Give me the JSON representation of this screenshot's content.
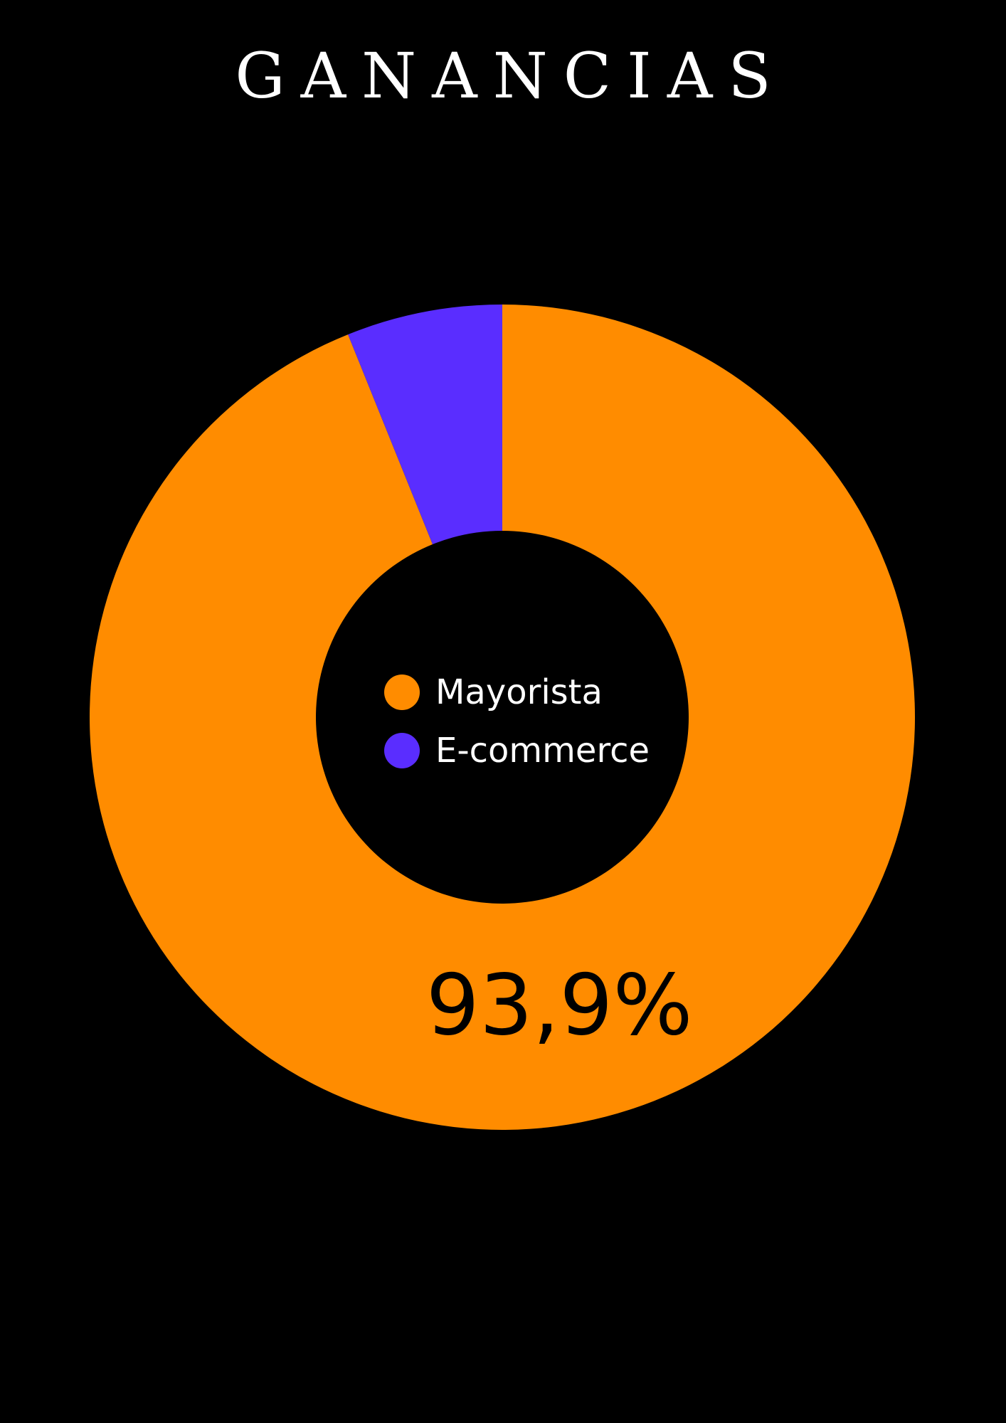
{
  "title": "GANANCIAS",
  "chart_data": {
    "type": "pie",
    "variant": "donut",
    "title": "GANANCIAS",
    "categories": [
      "Mayorista",
      "E-commerce"
    ],
    "values": [
      93.9,
      6.1
    ],
    "colors": [
      "#FF8C00",
      "#5A2DFF"
    ],
    "data_labels": [
      "93,9%",
      ""
    ],
    "legend": [
      {
        "label": "Mayorista",
        "color": "#FF8C00"
      },
      {
        "label": "E-commerce",
        "color": "#5A2DFF"
      }
    ],
    "legend_position": "center"
  }
}
